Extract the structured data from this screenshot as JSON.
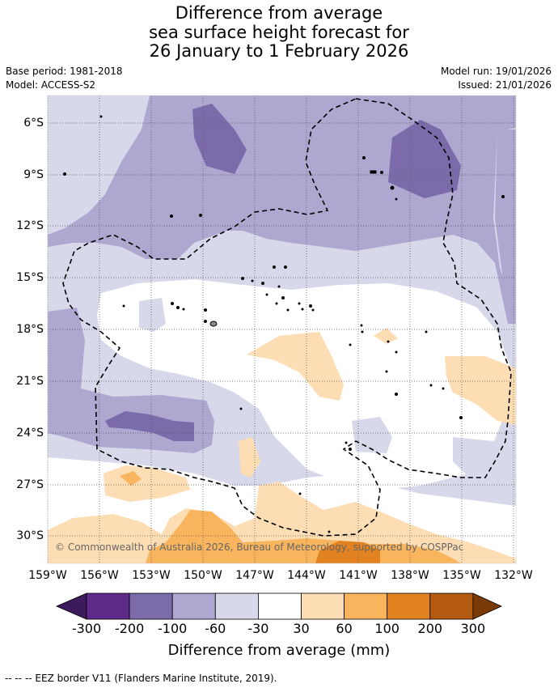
{
  "title": {
    "line1": "Difference from average",
    "line2": "sea surface height forecast for",
    "line3": "26 January to 1 February 2026"
  },
  "meta": {
    "base_period": "Base period: 1981-2018",
    "model": "Model: ACCESS-S2",
    "model_run": "Model run: 19/01/2026",
    "issued": "Issued: 21/01/2026"
  },
  "map": {
    "lat_labels": [
      "6°S",
      "9°S",
      "12°S",
      "15°S",
      "18°S",
      "21°S",
      "24°S",
      "27°S",
      "30°S"
    ],
    "lon_labels": [
      "159°W",
      "156°W",
      "153°W",
      "150°W",
      "147°W",
      "144°W",
      "141°W",
      "138°W",
      "135°W",
      "132°W"
    ],
    "copyright": "© Commonwealth of Australia 2026, Bureau of Meteorology, supported by COSPPac"
  },
  "colorbar": {
    "labels": [
      "-300",
      "-200",
      "-100",
      "-60",
      "-30",
      "30",
      "60",
      "100",
      "200",
      "300"
    ],
    "colors": [
      "#3d1a5e",
      "#5e2a8a",
      "#7c6baa",
      "#aea7d0",
      "#d7d8ea",
      "#ffffff",
      "#fddeb4",
      "#f9b45e",
      "#e28220",
      "#b35a10",
      "#7a3a08"
    ],
    "title": "Difference from average (mm)"
  },
  "legend": {
    "eez_text": "--  --  -- EEZ border V11 (Flanders Marine Institute, 2019)."
  }
}
